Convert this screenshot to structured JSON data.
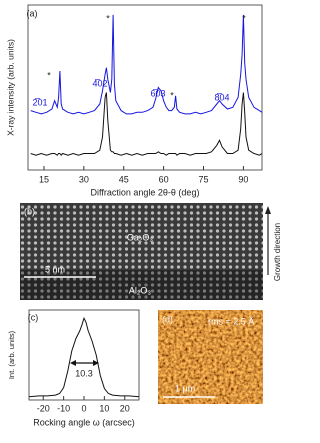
{
  "chart_data": [
    {
      "type": "line",
      "x_label": "Diffraction angle 2θ-θ (deg)",
      "y_label": "X-ray intensity (arb. units)",
      "x": [
        10,
        12,
        14,
        16,
        18,
        19,
        20,
        20.5,
        21,
        21.5,
        22,
        24,
        26,
        28,
        30,
        32,
        34,
        36,
        37,
        38,
        38.5,
        39,
        40,
        40.5,
        41,
        41.5,
        42,
        44,
        46,
        48,
        50,
        52,
        54,
        56,
        57,
        58,
        59,
        60,
        61,
        62,
        63,
        64,
        64.5,
        65,
        66,
        68,
        70,
        72,
        74,
        76,
        78,
        80,
        81,
        82,
        84,
        86,
        88,
        89,
        89.5,
        90,
        90.5,
        91,
        92,
        94,
        96,
        97
      ],
      "series": [
        {
          "color": "#1515e0",
          "values": [
            36,
            35,
            34,
            35,
            37,
            42,
            38,
            44,
            60,
            40,
            37,
            35,
            34,
            35,
            34,
            35,
            36,
            40,
            48,
            58,
            62,
            55,
            47,
            55,
            94,
            52,
            42,
            36,
            34,
            34,
            35,
            35,
            36,
            38,
            43,
            50,
            48,
            42,
            38,
            36,
            36,
            38,
            45,
            37,
            35,
            34,
            34,
            35,
            34,
            35,
            36,
            40,
            42,
            40,
            37,
            38,
            44,
            58,
            70,
            94,
            65,
            55,
            44,
            38,
            36,
            35
          ]
        },
        {
          "color": "#111111",
          "values": [
            10,
            9,
            10,
            9,
            10,
            10,
            9,
            10,
            10,
            9,
            10,
            9,
            10,
            9,
            10,
            10,
            10,
            12,
            20,
            44,
            47,
            30,
            12,
            11,
            11,
            10,
            10,
            9,
            10,
            9,
            10,
            9,
            10,
            10,
            10,
            11,
            10,
            10,
            9,
            10,
            10,
            10,
            10,
            9,
            10,
            10,
            9,
            10,
            10,
            10,
            11,
            15,
            18,
            14,
            10,
            10,
            12,
            25,
            40,
            47,
            35,
            20,
            12,
            10,
            9,
            10
          ]
        }
      ],
      "xlim": [
        9,
        97
      ],
      "ylim": [
        0,
        100
      ],
      "xticks": [
        15,
        30,
        45,
        60,
        75,
        90
      ],
      "annotations": [
        "(a)",
        "2̅01",
        "*",
        "4̅02",
        "*",
        "6̅03",
        "*",
        "8̅04",
        "*"
      ]
    },
    {
      "type": "line",
      "x_label": "Rocking angle ω (arcsec)",
      "y_label": "Int. (arb. units)",
      "x": [
        -27,
        -22,
        -18,
        -14,
        -12,
        -10,
        -8,
        -6,
        -4,
        -2,
        -1,
        0,
        1,
        2,
        4,
        6,
        8,
        10,
        12,
        14,
        18,
        22,
        27
      ],
      "series": [
        {
          "color": "#111111",
          "values": [
            0.04,
            0.05,
            0.05,
            0.06,
            0.08,
            0.15,
            0.35,
            0.6,
            0.75,
            0.85,
            0.92,
            1.0,
            0.95,
            0.85,
            0.72,
            0.55,
            0.3,
            0.14,
            0.08,
            0.06,
            0.05,
            0.05,
            0.04
          ]
        }
      ],
      "xlim": [
        -27,
        27
      ],
      "ylim": [
        0,
        1.1
      ],
      "xticks": [
        -20,
        -10,
        0,
        10,
        20
      ],
      "annotations": [
        "(c)",
        "10.3"
      ]
    }
  ],
  "images": {
    "b": {
      "label": "(b)",
      "top": "Ga₂O₃",
      "scale": "5 nm",
      "bottom": "Al₂O₃",
      "side": "Growth direction"
    },
    "d": {
      "label": "(d)",
      "rms": "rms = 2.5 Å",
      "scale": "1 µm"
    }
  }
}
